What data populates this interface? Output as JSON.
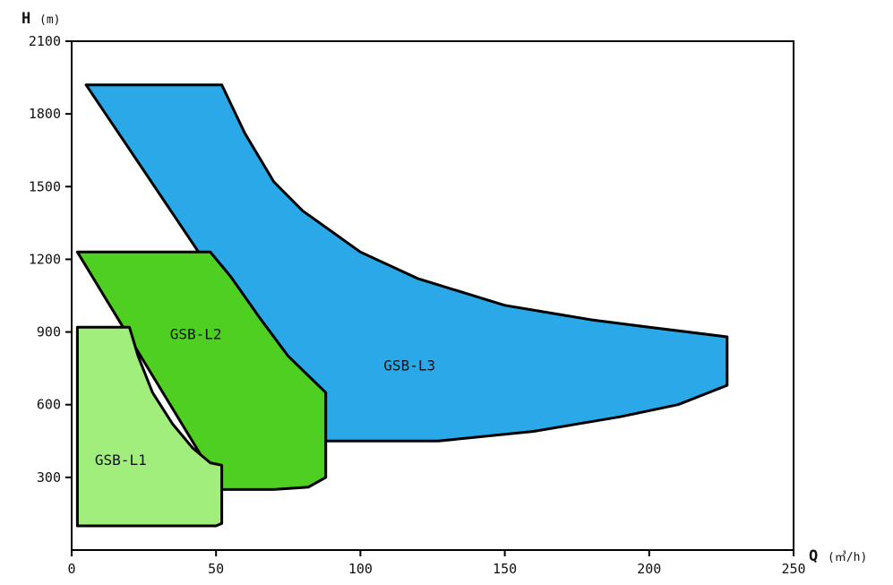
{
  "chart_data": {
    "type": "area",
    "x_axis": {
      "title": "Q",
      "unit": "(㎥/h)",
      "range": [
        0,
        250
      ],
      "ticks": [
        0,
        50,
        100,
        150,
        200,
        250
      ]
    },
    "y_axis": {
      "title": "H",
      "unit": "(m)",
      "range": [
        0,
        2100
      ],
      "ticks": [
        300,
        600,
        900,
        1200,
        1500,
        1800,
        2100
      ]
    },
    "grid": false,
    "series": [
      {
        "name": "GSB-L3",
        "color": "#2aa8e8",
        "label_at": [
          117,
          760
        ],
        "points": [
          [
            5,
            1920
          ],
          [
            52,
            1920
          ],
          [
            60,
            1720
          ],
          [
            70,
            1520
          ],
          [
            80,
            1400
          ],
          [
            100,
            1230
          ],
          [
            120,
            1120
          ],
          [
            150,
            1010
          ],
          [
            180,
            950
          ],
          [
            200,
            920
          ],
          [
            227,
            880
          ],
          [
            227,
            680
          ],
          [
            210,
            600
          ],
          [
            190,
            550
          ],
          [
            160,
            490
          ],
          [
            127,
            450
          ],
          [
            88,
            450
          ]
        ]
      },
      {
        "name": "GSB-L2",
        "color": "#4ecf22",
        "label_at": [
          43,
          890
        ],
        "points": [
          [
            2,
            1230
          ],
          [
            48,
            1230
          ],
          [
            55,
            1130
          ],
          [
            65,
            960
          ],
          [
            75,
            800
          ],
          [
            88,
            650
          ],
          [
            88,
            300
          ],
          [
            82,
            260
          ],
          [
            70,
            250
          ],
          [
            52,
            250
          ]
        ]
      },
      {
        "name": "GSB-L1",
        "color": "#a2ee7c",
        "label_at": [
          17,
          370
        ],
        "points": [
          [
            2,
            920
          ],
          [
            20,
            920
          ],
          [
            23,
            800
          ],
          [
            28,
            650
          ],
          [
            35,
            520
          ],
          [
            42,
            420
          ],
          [
            48,
            360
          ],
          [
            52,
            350
          ],
          [
            52,
            110
          ],
          [
            50,
            100
          ],
          [
            2,
            100
          ]
        ]
      }
    ]
  }
}
